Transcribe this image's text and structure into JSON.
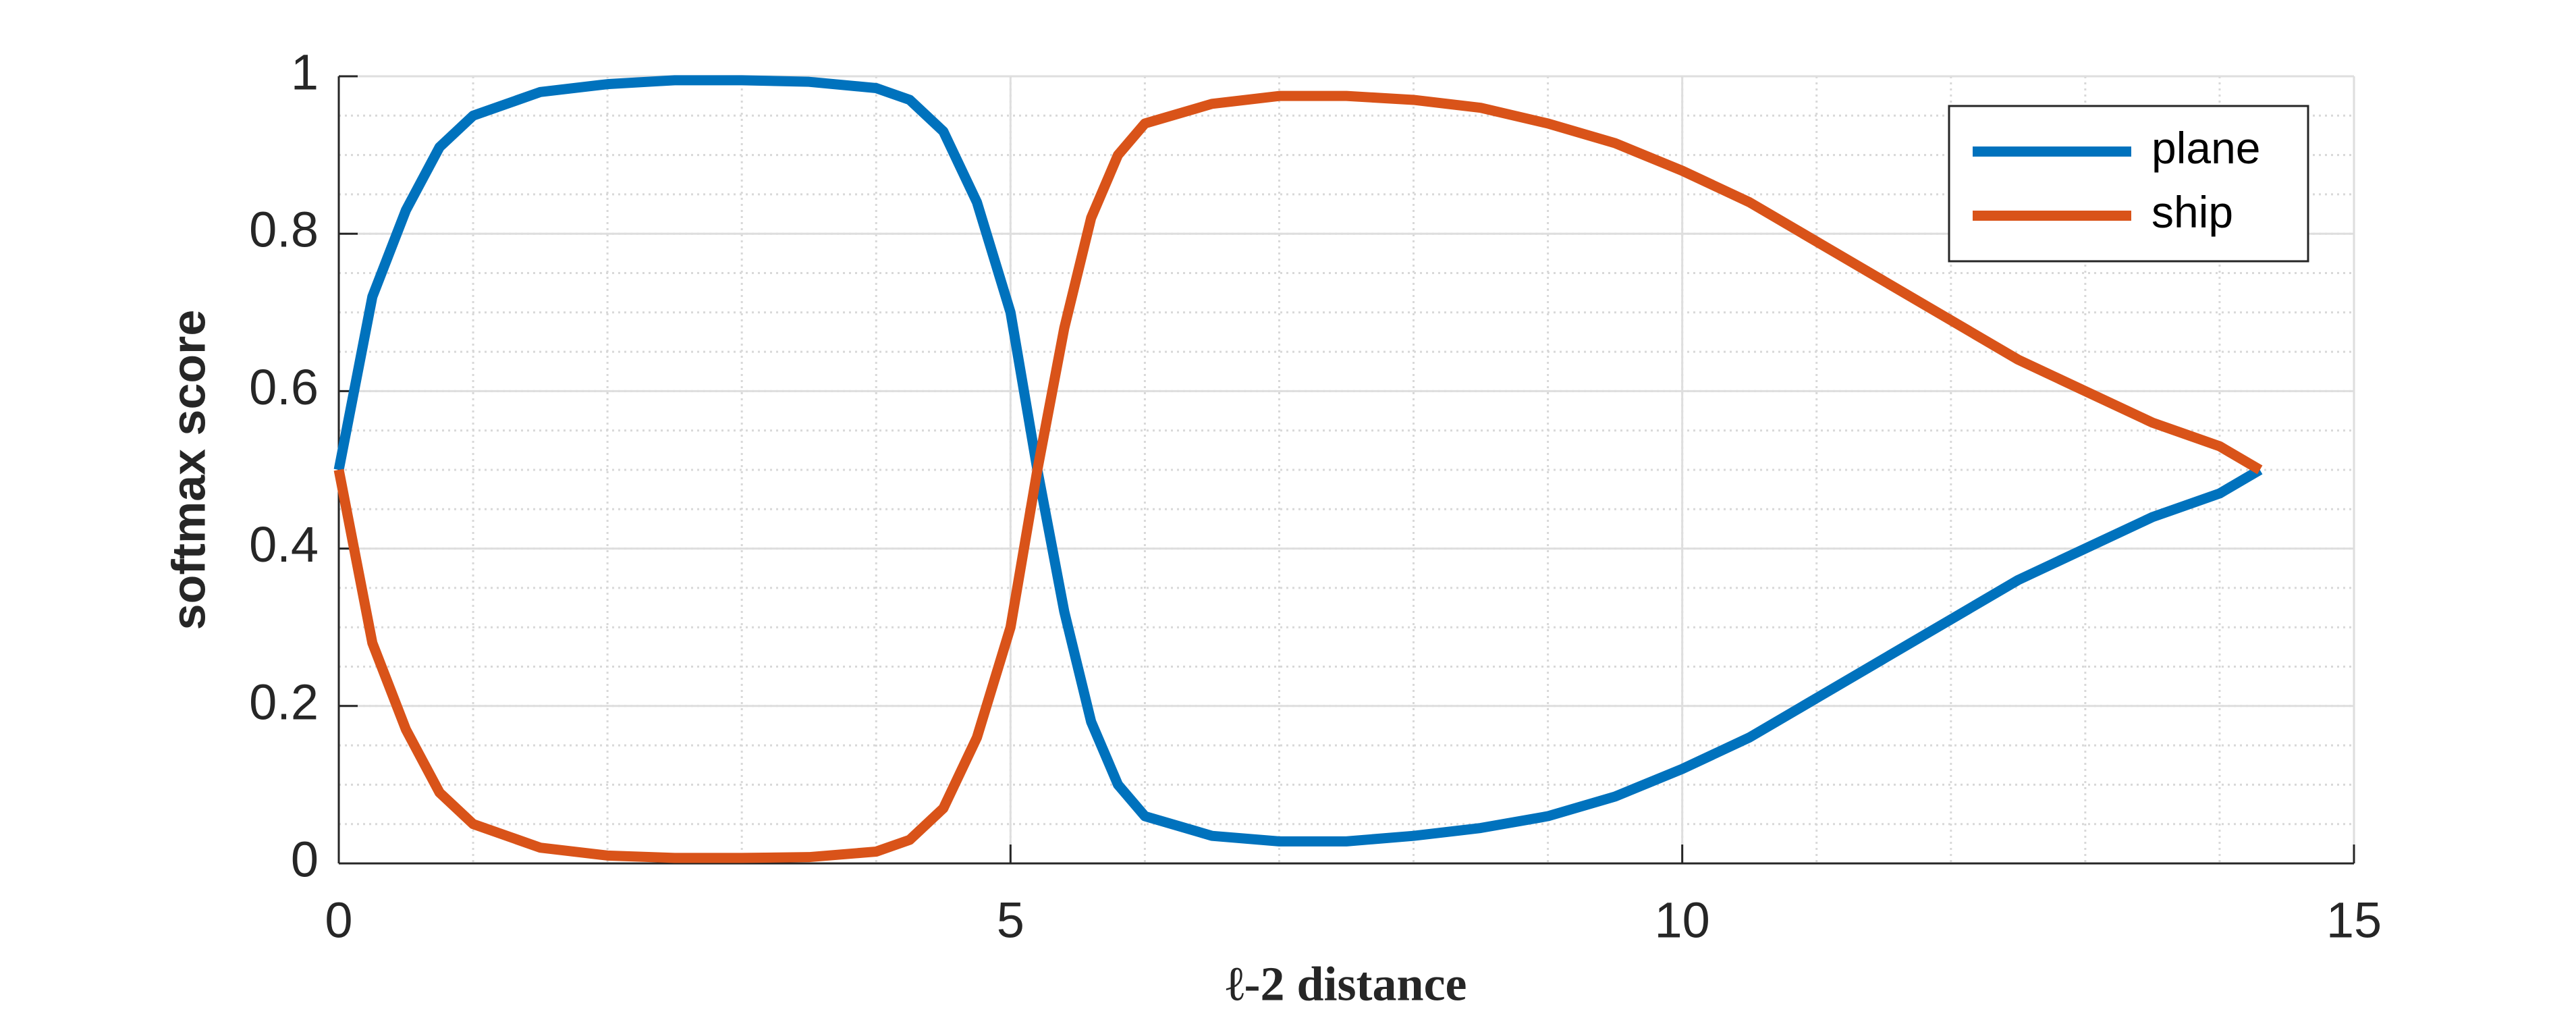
{
  "chart_data": {
    "type": "line",
    "xlabel": "ℓ-2 distance",
    "ylabel": "softmax score",
    "x": [
      0,
      0.25,
      0.5,
      0.75,
      1,
      1.5,
      2,
      2.5,
      3,
      3.5,
      4,
      4.25,
      4.5,
      4.75,
      5,
      5.2,
      5.4,
      5.6,
      5.8,
      6,
      6.5,
      7,
      7.5,
      8,
      8.5,
      9,
      9.5,
      10,
      10.5,
      11,
      11.5,
      12,
      12.5,
      13,
      13.5,
      14,
      14.3
    ],
    "series": [
      {
        "name": "plane",
        "color": "#0072bd",
        "values": [
          0.5,
          0.72,
          0.83,
          0.91,
          0.95,
          0.98,
          0.99,
          0.995,
          0.995,
          0.993,
          0.985,
          0.97,
          0.93,
          0.84,
          0.7,
          0.5,
          0.32,
          0.18,
          0.1,
          0.06,
          0.035,
          0.028,
          0.028,
          0.035,
          0.045,
          0.06,
          0.085,
          0.12,
          0.16,
          0.21,
          0.26,
          0.31,
          0.36,
          0.4,
          0.44,
          0.47,
          0.5
        ]
      },
      {
        "name": "ship",
        "color": "#d95319",
        "values": [
          0.5,
          0.28,
          0.17,
          0.09,
          0.05,
          0.02,
          0.01,
          0.007,
          0.007,
          0.008,
          0.015,
          0.03,
          0.07,
          0.16,
          0.3,
          0.5,
          0.68,
          0.82,
          0.9,
          0.94,
          0.965,
          0.975,
          0.975,
          0.97,
          0.96,
          0.94,
          0.915,
          0.88,
          0.84,
          0.79,
          0.74,
          0.69,
          0.64,
          0.6,
          0.56,
          0.53,
          0.5
        ]
      }
    ],
    "xlim": [
      0,
      15
    ],
    "xticks": [
      0,
      5,
      10,
      15
    ],
    "ylim": [
      0,
      1
    ],
    "yticks": [
      0,
      0.2,
      0.4,
      0.6,
      0.8,
      1
    ],
    "grid": true,
    "minor_grid": true,
    "legend": "upper right"
  }
}
